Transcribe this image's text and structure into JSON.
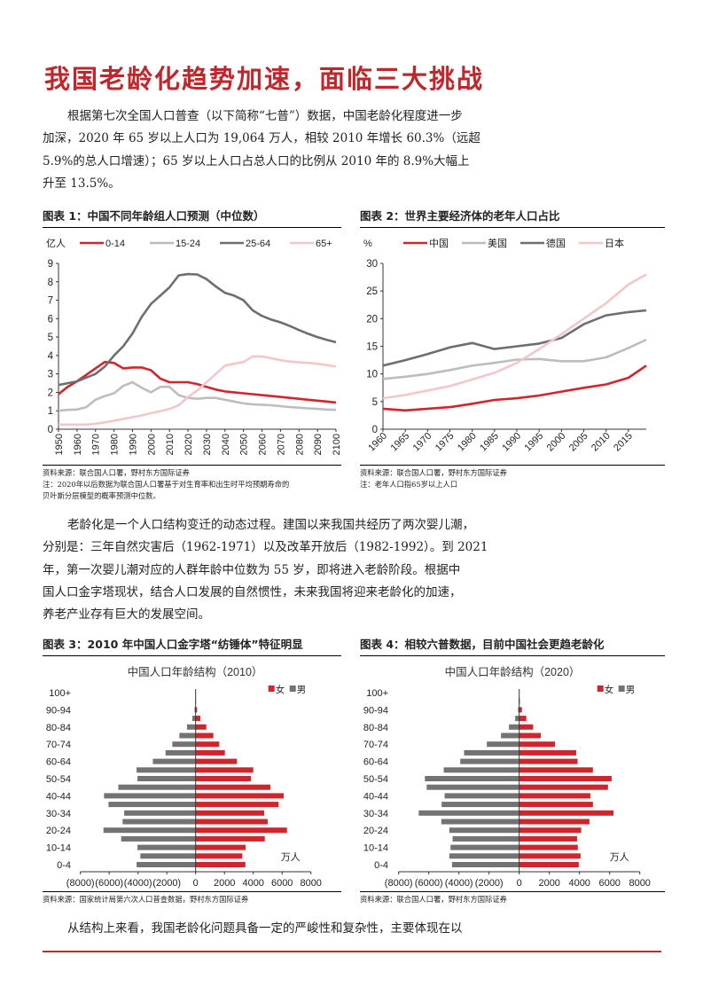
{
  "title": "我国老龄化趋势加速，面临三大挑战",
  "para1": [
    "根据第七次全国人口普查（以下简称“七普”）数据，中国老龄化程度进一步",
    "加深，2020 年 65 岁以上人口为 19,064 万人，相较 2010 年增长 60.3%（远超",
    "5.9%的总人口增速）；65 岁以上人口占总人口的比例从 2010 年的 8.9%大幅上",
    "升至 13.5%。"
  ],
  "para2": [
    "老龄化是一个人口结构变迁的动态过程。建国以来我国共经历了两次婴儿潮，",
    "分别是：三年自然灾害后（1962-1971）以及改革开放后（1982-1992）。到 2021",
    "年，第一次婴儿潮对应的人群年龄中位数为 55 岁，即将进入老龄阶段。根据中",
    "国人口金字塔现状，结合人口发展的自然惯性，未来我国将迎来老龄化的加速，",
    "养老产业存有巨大的发展空间。"
  ],
  "para3": "从结构上来看，我国老龄化问题具备一定的严峻性和复杂性，主要体现在以",
  "fig1": {
    "heading": "图表 1：中国不同年龄组人口预测（中位数）",
    "source": "资料来源：联合国人口署，野村东方国际证券",
    "note1": "注：2020年以后数据为联合国人口署基于对生育率和出生时平均预期寿命的",
    "note2": "贝叶斯分层模型的概率预测中位数。"
  },
  "fig2": {
    "heading": "图表 2：世界主要经济体的老年人口占比",
    "source": "资料来源：联合国人口署，野村东方国际证券",
    "note1": "注：老年人口指65岁以上人口"
  },
  "fig3": {
    "heading": "图表 3：2010 年中国人口金字塔“纺锤体”特征明显",
    "source": "资料来源：国家统计局第六次人口普查数据，野村东方国际证券"
  },
  "fig4": {
    "heading": "图表 4：相较六普数据，目前中国社会更趋老龄化",
    "source": "资料来源：联合国人口署，野村东方国际证券"
  },
  "chart_data": [
    {
      "type": "line",
      "ylabel": "亿人",
      "ylim": [
        0,
        9
      ],
      "yticks": [
        0,
        1,
        2,
        3,
        4,
        5,
        6,
        7,
        8,
        9
      ],
      "x": [
        1950,
        1955,
        1960,
        1965,
        1970,
        1975,
        1980,
        1985,
        1990,
        1995,
        2000,
        2005,
        2010,
        2015,
        2020,
        2025,
        2030,
        2035,
        2040,
        2045,
        2050,
        2055,
        2060,
        2065,
        2070,
        2075,
        2080,
        2085,
        2090,
        2095,
        2100
      ],
      "xticks": [
        1950,
        1960,
        1970,
        1980,
        1990,
        2000,
        2010,
        2020,
        2030,
        2040,
        2050,
        2060,
        2070,
        2080,
        2090,
        2100
      ],
      "legend": "top",
      "grid": false,
      "series": [
        {
          "name": "0-14",
          "color": "#d0262b",
          "values": [
            1.9,
            2.3,
            2.6,
            2.95,
            3.3,
            3.65,
            3.6,
            3.3,
            3.35,
            3.35,
            3.2,
            2.75,
            2.55,
            2.55,
            2.55,
            2.45,
            2.3,
            2.15,
            2.05,
            2.0,
            1.95,
            1.9,
            1.85,
            1.8,
            1.75,
            1.7,
            1.65,
            1.6,
            1.55,
            1.5,
            1.45
          ]
        },
        {
          "name": "15-24",
          "color": "#bdbdbd",
          "values": [
            1.0,
            1.05,
            1.07,
            1.2,
            1.6,
            1.8,
            1.95,
            2.35,
            2.55,
            2.25,
            2.0,
            2.3,
            2.3,
            1.85,
            1.7,
            1.65,
            1.7,
            1.7,
            1.6,
            1.5,
            1.4,
            1.35,
            1.33,
            1.3,
            1.25,
            1.2,
            1.17,
            1.13,
            1.1,
            1.07,
            1.05
          ]
        },
        {
          "name": "25-64",
          "color": "#6e6e6e",
          "values": [
            2.4,
            2.5,
            2.6,
            2.8,
            3.0,
            3.4,
            4.0,
            4.5,
            5.2,
            6.1,
            6.8,
            7.25,
            7.7,
            8.35,
            8.42,
            8.4,
            8.15,
            7.75,
            7.4,
            7.25,
            7.0,
            6.45,
            6.15,
            5.95,
            5.8,
            5.6,
            5.38,
            5.18,
            5.0,
            4.85,
            4.72
          ]
        },
        {
          "name": "65+",
          "color": "#f4c6c8",
          "values": [
            0.25,
            0.25,
            0.25,
            0.25,
            0.3,
            0.37,
            0.46,
            0.56,
            0.65,
            0.75,
            0.87,
            0.98,
            1.1,
            1.3,
            1.75,
            2.1,
            2.55,
            3.0,
            3.45,
            3.55,
            3.65,
            3.95,
            3.95,
            3.85,
            3.75,
            3.67,
            3.63,
            3.6,
            3.55,
            3.48,
            3.4
          ]
        }
      ]
    },
    {
      "type": "line",
      "ylabel": "%",
      "ylim": [
        0,
        30
      ],
      "yticks": [
        0,
        5,
        10,
        15,
        20,
        25,
        30
      ],
      "x": [
        1960,
        1965,
        1970,
        1975,
        1980,
        1985,
        1990,
        1995,
        2000,
        2005,
        2010,
        2015,
        2019
      ],
      "xticks": [
        1960,
        1965,
        1970,
        1975,
        1980,
        1985,
        1990,
        1995,
        2000,
        2005,
        2010,
        2015
      ],
      "legend": "top",
      "grid": false,
      "series": [
        {
          "name": "中国",
          "color": "#d0262b",
          "values": [
            3.7,
            3.4,
            3.7,
            4.0,
            4.6,
            5.3,
            5.6,
            6.1,
            6.8,
            7.5,
            8.1,
            9.3,
            11.5
          ]
        },
        {
          "name": "美国",
          "color": "#bdbdbd",
          "values": [
            9.1,
            9.5,
            10.0,
            10.7,
            11.5,
            12.0,
            12.6,
            12.7,
            12.3,
            12.3,
            13.0,
            14.7,
            16.2
          ]
        },
        {
          "name": "德国",
          "color": "#6e6e6e",
          "values": [
            11.5,
            12.5,
            13.6,
            14.8,
            15.6,
            14.5,
            15.0,
            15.5,
            16.5,
            19.0,
            20.6,
            21.2,
            21.5
          ]
        },
        {
          "name": "日本",
          "color": "#f4c6c8",
          "values": [
            5.6,
            6.2,
            7.0,
            7.8,
            9.0,
            10.2,
            12.0,
            14.5,
            17.2,
            20.0,
            22.8,
            26.2,
            28.0
          ]
        }
      ]
    },
    {
      "type": "bar",
      "orientation": "horizontal-pyramid",
      "title": "中国人口年龄结构（2010）",
      "unit": "万人",
      "xlim": [
        -8000,
        8000
      ],
      "xticklabels": [
        "(8000)",
        "(6000)",
        "(4000)",
        "(2000)",
        "0",
        "2000",
        "4000",
        "6000",
        "8000"
      ],
      "categories": [
        "0-4",
        "5-9",
        "10-14",
        "15-19",
        "20-24",
        "25-29",
        "30-34",
        "35-39",
        "40-44",
        "45-49",
        "50-54",
        "55-59",
        "60-64",
        "65-69",
        "70-74",
        "75-79",
        "80-84",
        "85-89",
        "90-94",
        "95-99",
        "100+"
      ],
      "category_labels_shown": [
        "0-4",
        "10-14",
        "20-24",
        "30-34",
        "40-44",
        "50-54",
        "60-64",
        "70-74",
        "80-84",
        "90-94",
        "100+"
      ],
      "legend": "top-right",
      "series": [
        {
          "name": "女",
          "color": "#d0262b",
          "values": [
            3450,
            3240,
            3470,
            4800,
            6340,
            5000,
            4760,
            5760,
            6110,
            5190,
            3840,
            4000,
            2870,
            2030,
            1640,
            1230,
            740,
            330,
            100,
            20,
            0
          ]
        },
        {
          "name": "男",
          "color": "#737373",
          "values": [
            4100,
            3840,
            4040,
            5170,
            6400,
            5070,
            4960,
            6050,
            6360,
            5370,
            4040,
            4100,
            2970,
            2090,
            1620,
            1130,
            600,
            230,
            80,
            20,
            0
          ]
        }
      ]
    },
    {
      "type": "bar",
      "orientation": "horizontal-pyramid",
      "title": "中国人口年龄结构（2020）",
      "unit": "万人",
      "xlim": [
        -8000,
        8000
      ],
      "xticklabels": [
        "(8000)",
        "(6000)",
        "(4000)",
        "(2000)",
        "0",
        "2000",
        "4000",
        "6000",
        "8000"
      ],
      "categories": [
        "0-4",
        "5-9",
        "10-14",
        "15-19",
        "20-24",
        "25-29",
        "30-34",
        "35-39",
        "40-44",
        "45-49",
        "50-54",
        "55-59",
        "60-64",
        "65-69",
        "70-74",
        "75-79",
        "80-84",
        "85-89",
        "90-94",
        "95-99",
        "100+"
      ],
      "category_labels_shown": [
        "0-4",
        "10-14",
        "20-24",
        "30-34",
        "40-44",
        "50-54",
        "60-64",
        "70-74",
        "80-84",
        "90-94",
        "100+"
      ],
      "legend": "top-right",
      "series": [
        {
          "name": "女",
          "color": "#d0262b",
          "values": [
            3950,
            4070,
            3890,
            3840,
            4110,
            4660,
            6260,
            4890,
            4720,
            5890,
            6130,
            4890,
            3870,
            3780,
            2370,
            1430,
            920,
            470,
            180,
            40,
            0
          ]
        },
        {
          "name": "男",
          "color": "#737373",
          "values": [
            4460,
            4640,
            4560,
            4420,
            4640,
            5170,
            6670,
            5150,
            4950,
            6140,
            6260,
            5010,
            3910,
            3660,
            2150,
            1210,
            680,
            270,
            80,
            40,
            0
          ]
        }
      ]
    }
  ]
}
